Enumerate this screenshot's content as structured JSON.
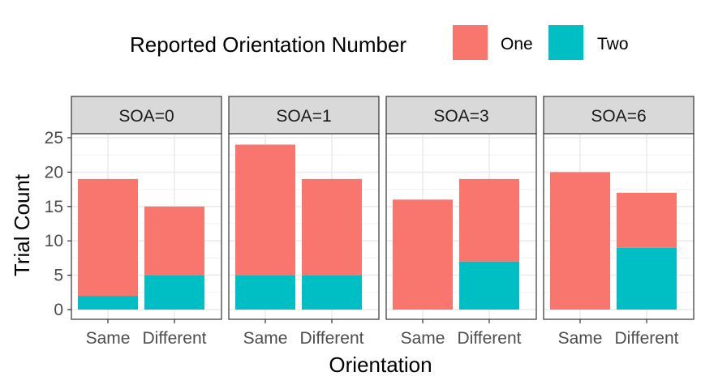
{
  "chart_data": {
    "type": "bar",
    "stacked": true,
    "facet_label_prefix": "SOA=",
    "legend": {
      "title": "Reported Orientation Number",
      "position": "top"
    },
    "xlabel": "Orientation",
    "ylabel": "Trial Count",
    "ylim": [
      0,
      25
    ],
    "y_ticks": [
      0,
      5,
      10,
      15,
      20,
      25
    ],
    "grid": true,
    "categories": [
      "Same",
      "Different"
    ],
    "series": [
      {
        "name": "One",
        "color": "#F8766D"
      },
      {
        "name": "Two",
        "color": "#00BFC4"
      }
    ],
    "facets": [
      {
        "label": "SOA=0",
        "values": {
          "One": [
            17,
            10
          ],
          "Two": [
            2,
            5
          ]
        }
      },
      {
        "label": "SOA=1",
        "values": {
          "One": [
            19,
            14
          ],
          "Two": [
            5,
            5
          ]
        }
      },
      {
        "label": "SOA=3",
        "values": {
          "One": [
            16,
            12
          ],
          "Two": [
            0,
            7
          ]
        }
      },
      {
        "label": "SOA=6",
        "values": {
          "One": [
            20,
            8
          ],
          "Two": [
            0,
            9
          ]
        }
      }
    ]
  }
}
